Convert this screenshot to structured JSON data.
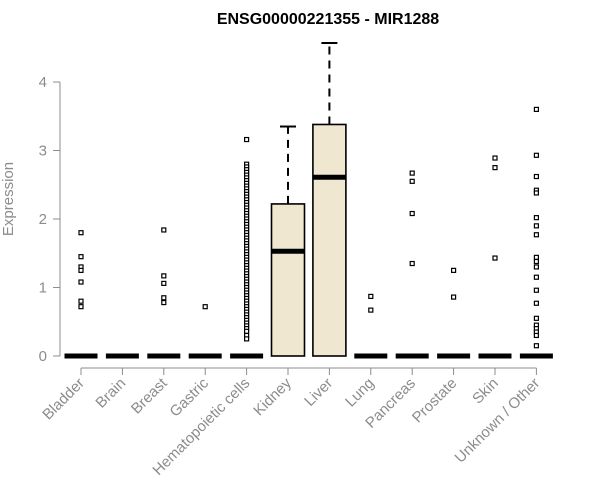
{
  "chart_data": {
    "type": "box",
    "title": "ENSG00000221355 - MIR1288",
    "xlabel": "",
    "ylabel": "Expression",
    "ylim": [
      0,
      4.6
    ],
    "yticks": [
      0,
      1,
      2,
      3,
      4
    ],
    "grid": false,
    "legend": "none",
    "colors": {
      "box_fill": "#efe7cf",
      "stroke": "#000000",
      "axis": "#8c8c8c"
    },
    "categories": [
      "Bladder",
      "Brain",
      "Breast",
      "Gastric",
      "Hematopoietic cells",
      "Kidney",
      "Liver",
      "Lung",
      "Pancreas",
      "Prostate",
      "Skin",
      "Unknown / Other"
    ],
    "boxes": [
      {
        "q1": 0,
        "median": 0,
        "q3": 0,
        "whisker_low": 0,
        "whisker_high": 0,
        "outliers": [
          1.8,
          1.45,
          1.3,
          1.25,
          1.08,
          0.8,
          0.72
        ]
      },
      {
        "q1": 0,
        "median": 0,
        "q3": 0,
        "whisker_low": 0,
        "whisker_high": 0,
        "outliers": []
      },
      {
        "q1": 0,
        "median": 0,
        "q3": 0,
        "whisker_low": 0,
        "whisker_high": 0,
        "outliers": [
          1.84,
          1.17,
          1.06,
          0.85,
          0.78
        ]
      },
      {
        "q1": 0,
        "median": 0,
        "q3": 0,
        "whisker_low": 0,
        "whisker_high": 0,
        "outliers": [
          0.72
        ]
      },
      {
        "q1": 0,
        "median": 0,
        "q3": 0,
        "whisker_low": 0,
        "whisker_high": 0,
        "outliers": [
          3.16,
          2.8,
          2.76,
          2.72,
          2.68,
          2.64,
          2.6,
          2.56,
          2.52,
          2.48,
          2.44,
          2.4,
          2.36,
          2.32,
          2.28,
          2.24,
          2.2,
          2.16,
          2.12,
          2.08,
          2.04,
          2.0,
          1.96,
          1.92,
          1.88,
          1.84,
          1.8,
          1.76,
          1.72,
          1.68,
          1.64,
          1.6,
          1.56,
          1.52,
          1.48,
          1.44,
          1.4,
          1.36,
          1.32,
          1.28,
          1.24,
          1.2,
          1.16,
          1.12,
          1.08,
          1.04,
          1.0,
          0.96,
          0.92,
          0.88,
          0.84,
          0.8,
          0.76,
          0.72,
          0.68,
          0.64,
          0.6,
          0.56,
          0.52,
          0.48,
          0.44,
          0.4,
          0.36,
          0.3,
          0.25
        ]
      },
      {
        "q1": 0,
        "median": 1.53,
        "q3": 2.22,
        "whisker_low": 0,
        "whisker_high": 3.35,
        "outliers": []
      },
      {
        "q1": 0,
        "median": 2.61,
        "q3": 3.38,
        "whisker_low": 0,
        "whisker_high": 4.57,
        "outliers": []
      },
      {
        "q1": 0,
        "median": 0,
        "q3": 0,
        "whisker_low": 0,
        "whisker_high": 0,
        "outliers": [
          0.87,
          0.67
        ]
      },
      {
        "q1": 0,
        "median": 0,
        "q3": 0,
        "whisker_low": 0,
        "whisker_high": 0,
        "outliers": [
          2.67,
          2.55,
          2.08,
          1.35
        ]
      },
      {
        "q1": 0,
        "median": 0,
        "q3": 0,
        "whisker_low": 0,
        "whisker_high": 0,
        "outliers": [
          1.25,
          0.86
        ]
      },
      {
        "q1": 0,
        "median": 0,
        "q3": 0,
        "whisker_low": 0,
        "whisker_high": 0,
        "outliers": [
          2.89,
          2.75,
          1.43
        ]
      },
      {
        "q1": 0,
        "median": 0,
        "q3": 0,
        "whisker_low": 0,
        "whisker_high": 0,
        "outliers": [
          3.6,
          2.93,
          2.62,
          2.42,
          2.38,
          2.02,
          1.9,
          1.77,
          1.44,
          1.38,
          1.3,
          1.15,
          0.96,
          0.77,
          0.55,
          0.45,
          0.4,
          0.35,
          0.3,
          0.15
        ]
      }
    ]
  }
}
